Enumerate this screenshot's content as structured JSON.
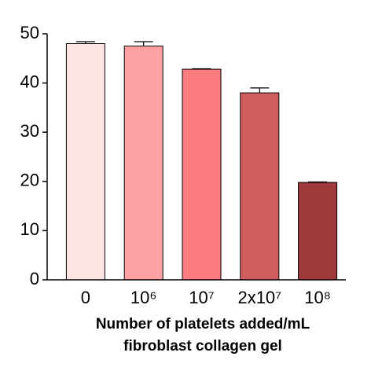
{
  "chart_data": {
    "type": "bar",
    "categories": [
      "0",
      "10⁶",
      "10⁷",
      "2x10⁷",
      "10⁸"
    ],
    "values": [
      48,
      47.5,
      42.8,
      38,
      19.8
    ],
    "errors": [
      0.4,
      0.9,
      0.1,
      1.0,
      0.1
    ],
    "colors": [
      "#ffe4e6",
      "#fda1a3",
      "#fb7c7f",
      "#d15c5e",
      "#9e3a3c"
    ],
    "ylim": [
      0,
      50
    ],
    "yticks": [
      0,
      10,
      20,
      30,
      40,
      50
    ],
    "xlabel": [
      "Number of platelets added/mL",
      "fibroblast collagen gel"
    ]
  }
}
